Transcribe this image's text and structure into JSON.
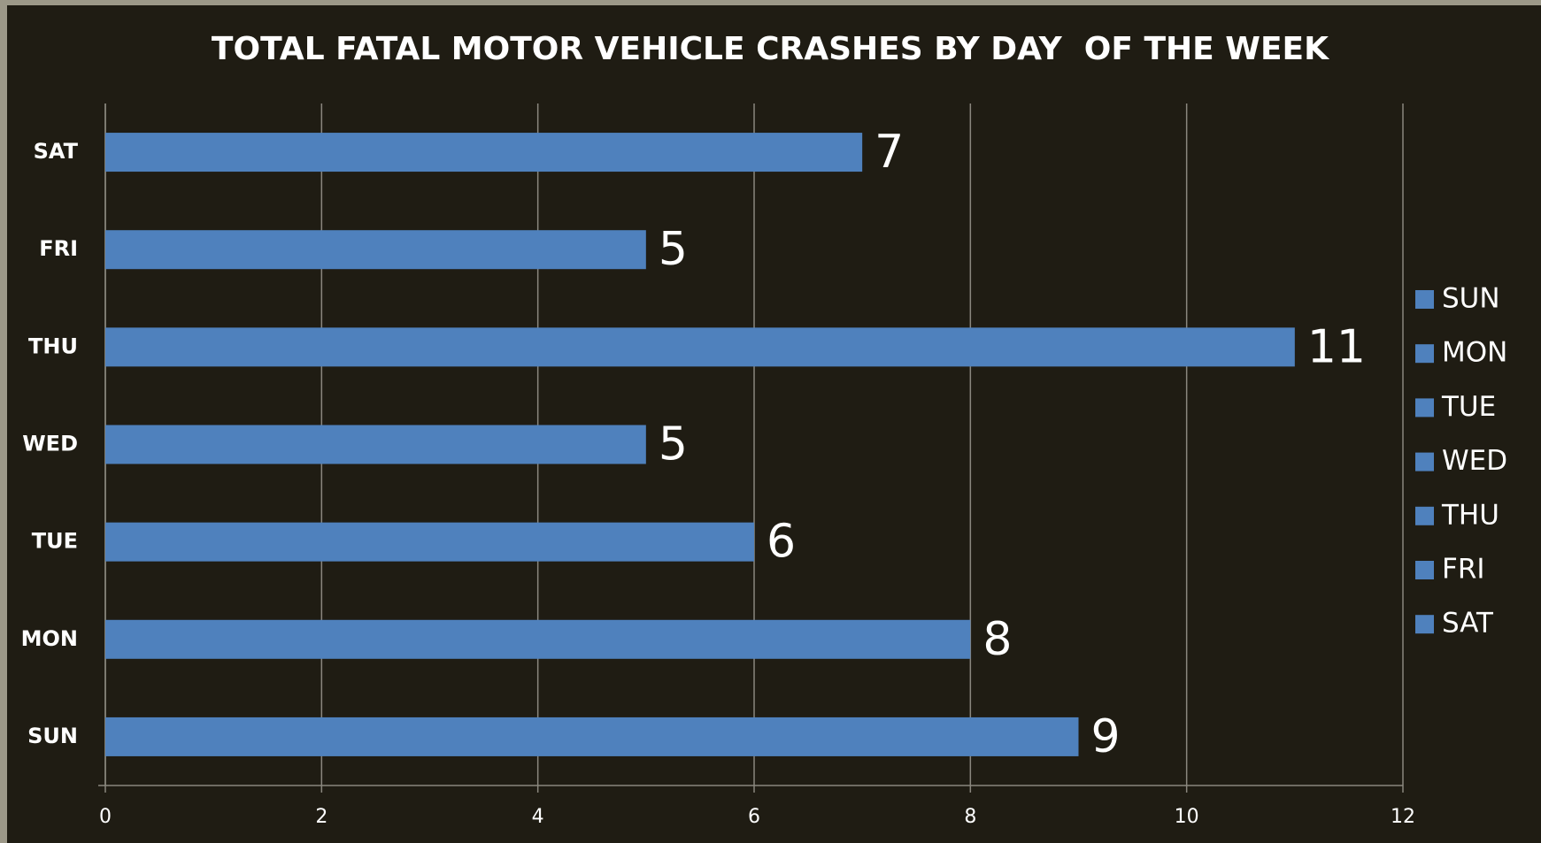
{
  "chart_data": {
    "type": "bar",
    "orientation": "horizontal",
    "title": "TOTAL FATAL MOTOR VEHICLE CRASHES BY DAY  OF THE WEEK",
    "categories": [
      "SUN",
      "MON",
      "TUE",
      "WED",
      "THU",
      "FRI",
      "SAT"
    ],
    "values": [
      9,
      8,
      6,
      5,
      11,
      5,
      7
    ],
    "color": "#4f81bd",
    "xlim": [
      0,
      12
    ],
    "xticks": [
      0,
      2,
      4,
      6,
      8,
      10,
      12
    ],
    "grid": true,
    "legend": "right"
  }
}
